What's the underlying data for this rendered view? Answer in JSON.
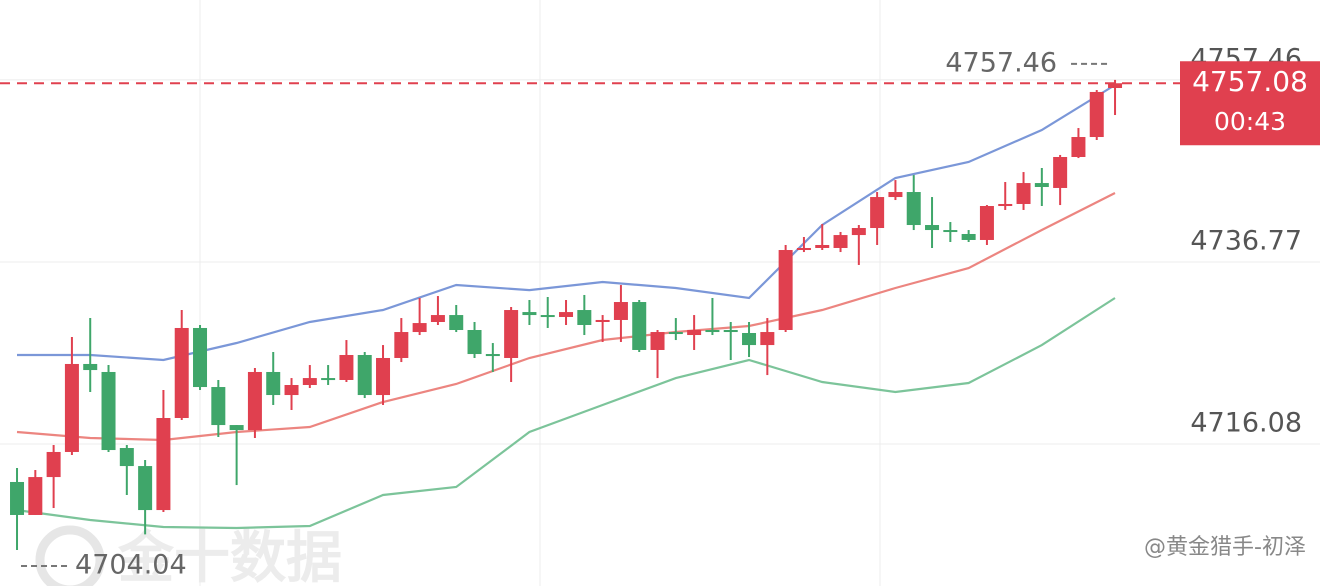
{
  "chart_data": {
    "type": "candlestick",
    "up_color": "#e0404f",
    "down_color": "#3fa66a",
    "xlim": [
      -0.93,
      71.2
    ],
    "ylim": [
      4699.95,
      4766.54
    ],
    "yticks": [
      4757.46,
      4736.77,
      4716.08
    ],
    "grid": true,
    "open": [
      4711.77,
      4708.02,
      4712.33,
      4715.18,
      4725.18,
      4724.27,
      4715.63,
      4713.58,
      4708.58,
      4719.04,
      4729.27,
      4722.56,
      4718.24,
      4717.67,
      4724.27,
      4721.65,
      4722.79,
      4723.58,
      4723.36,
      4726.2,
      4721.65,
      4725.86,
      4728.81,
      4729.95,
      4730.74,
      4729.04,
      4726.31,
      4725.86,
      4731.08,
      4730.74,
      4730.52,
      4731.31,
      4729.95,
      4730.18,
      4732.22,
      4726.77,
      4728.81,
      4728.47,
      4729.04,
      4729.04,
      4728.7,
      4727.33,
      4729.04,
      4738.13,
      4738.36,
      4738.36,
      4739.83,
      4740.63,
      4744.15,
      4744.72,
      4740.97,
      4740.4,
      4739.95,
      4739.27,
      4743.13,
      4743.36,
      4745.74,
      4745.18,
      4748.7,
      4750.97,
      4756.54
    ],
    "high": [
      4713.36,
      4713.13,
      4715.97,
      4728.24,
      4730.4,
      4725.06,
      4715.97,
      4714.27,
      4722.22,
      4731.31,
      4729.61,
      4723.36,
      4718.24,
      4724.72,
      4726.54,
      4723.58,
      4725.06,
      4725.06,
      4727.9,
      4726.54,
      4727.33,
      4730.4,
      4732.68,
      4732.9,
      4731.88,
      4729.95,
      4727.56,
      4731.65,
      4732.45,
      4732.79,
      4732.45,
      4733.02,
      4730.74,
      4734.15,
      4732.45,
      4729.04,
      4730.4,
      4730.74,
      4732.68,
      4729.95,
      4729.95,
      4730.4,
      4738.7,
      4739.61,
      4741.08,
      4740.18,
      4740.97,
      4744.72,
      4746.08,
      4746.65,
      4744.15,
      4741.31,
      4740.4,
      4743.24,
      4745.86,
      4746.99,
      4747.45,
      4748.93,
      4751.99,
      4756.31,
      4757.46
    ],
    "low": [
      4704.04,
      4708.02,
      4708.81,
      4714.83,
      4721.99,
      4715.18,
      4710.29,
      4705.82,
      4708.36,
      4718.81,
      4722.22,
      4716.88,
      4711.42,
      4716.77,
      4720.52,
      4719.95,
      4722.45,
      4722.79,
      4723.13,
      4721.31,
      4720.52,
      4725.4,
      4728.47,
      4729.61,
      4728.81,
      4725.86,
      4724.27,
      4723.13,
      4729.61,
      4729.27,
      4729.61,
      4728.47,
      4727.68,
      4727.68,
      4726.54,
      4723.58,
      4727.9,
      4726.77,
      4728.47,
      4725.63,
      4725.97,
      4723.92,
      4728.81,
      4737.9,
      4738.13,
      4737.9,
      4736.43,
      4738.7,
      4743.81,
      4740.4,
      4738.36,
      4739.04,
      4739.04,
      4738.7,
      4742.68,
      4742.68,
      4743.13,
      4743.24,
      4748.58,
      4750.63,
      4753.47
    ],
    "close": [
      4708.02,
      4712.33,
      4715.18,
      4725.18,
      4724.49,
      4715.4,
      4713.58,
      4708.58,
      4719.04,
      4729.27,
      4722.56,
      4718.24,
      4717.67,
      4724.27,
      4721.65,
      4722.79,
      4723.58,
      4723.36,
      4726.2,
      4721.65,
      4725.86,
      4728.81,
      4729.83,
      4730.74,
      4729.04,
      4726.31,
      4726.08,
      4731.31,
      4730.74,
      4730.52,
      4731.08,
      4729.61,
      4730.18,
      4732.22,
      4726.77,
      4728.81,
      4728.7,
      4729.04,
      4728.81,
      4728.81,
      4727.33,
      4728.81,
      4738.13,
      4738.36,
      4738.7,
      4739.83,
      4740.63,
      4744.15,
      4744.72,
      4740.97,
      4740.4,
      4740.18,
      4739.27,
      4743.13,
      4743.36,
      4745.74,
      4745.29,
      4748.7,
      4750.97,
      4756.09,
      4757.08
    ],
    "lines": [
      {
        "color": "#7b97d8",
        "x": [
          0,
          4,
          8,
          12,
          16,
          20,
          24,
          28,
          32,
          36,
          40,
          44,
          48,
          52,
          56,
          60
        ],
        "values": [
          4726.2,
          4726.2,
          4725.63,
          4727.56,
          4729.95,
          4731.31,
          4734.15,
          4733.58,
          4734.49,
          4733.81,
          4732.68,
          4740.97,
          4746.31,
          4748.13,
          4751.77,
          4756.88
        ]
      },
      {
        "color": "#ec8580",
        "x": [
          0,
          4,
          8,
          12,
          16,
          20,
          24,
          28,
          32,
          36,
          40,
          44,
          48,
          52,
          56,
          60
        ],
        "values": [
          4717.45,
          4716.77,
          4716.54,
          4717.45,
          4718.02,
          4720.86,
          4722.9,
          4725.86,
          4727.9,
          4728.81,
          4729.49,
          4731.31,
          4733.81,
          4736.08,
          4740.4,
          4744.61
        ]
      },
      {
        "color": "#7cc49a",
        "x": [
          0,
          4,
          8,
          12,
          16,
          20,
          24,
          28,
          32,
          36,
          40,
          44,
          48,
          52,
          56,
          60
        ],
        "values": [
          4708.58,
          4707.45,
          4706.65,
          4706.54,
          4706.77,
          4710.29,
          4711.2,
          4717.45,
          4720.52,
          4723.58,
          4725.63,
          4723.13,
          4721.99,
          4723.02,
          4727.33,
          4732.68
        ]
      }
    ],
    "countdown": "00:43",
    "watermark": "金十数据",
    "credit": "@黄金猎手-初泽"
  }
}
